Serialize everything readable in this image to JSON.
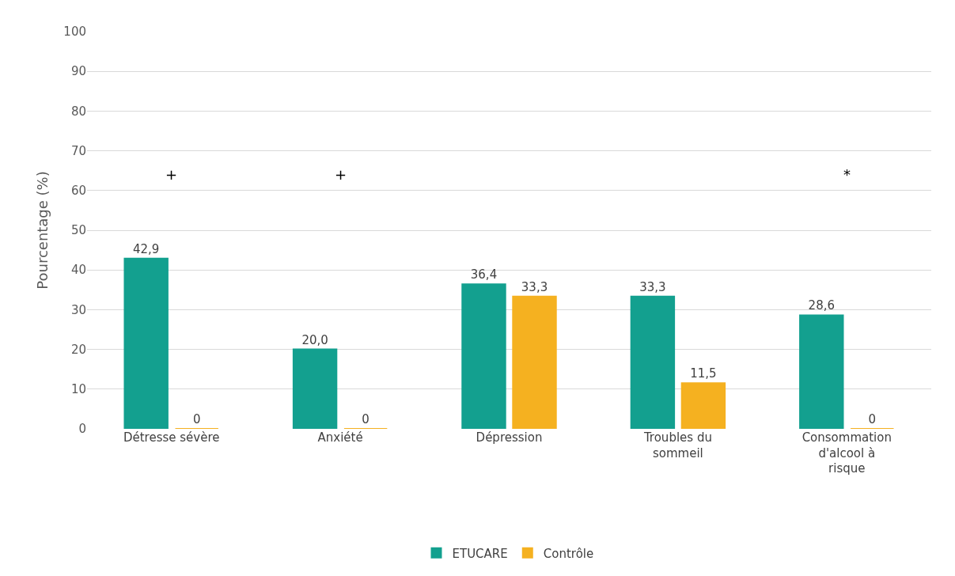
{
  "chart_data": {
    "type": "bar",
    "ylabel": "Pourcentage (%)",
    "categories": [
      "Détresse sévère",
      "Anxiété",
      "Dépression",
      "Troubles du sommeil",
      "Consommation d'alcool à risque"
    ],
    "series": [
      {
        "name": "ETUCARE",
        "color": "#13a08f",
        "values": [
          42.9,
          20.0,
          36.4,
          33.3,
          28.6
        ],
        "value_labels": [
          "42,9",
          "20,0",
          "36,4",
          "33,3",
          "28,6"
        ]
      },
      {
        "name": "Contrôle",
        "color": "#f5b120",
        "values": [
          0,
          0,
          33.3,
          11.5,
          0
        ],
        "value_labels": [
          "0",
          "0",
          "33,3",
          "11,5",
          "0"
        ]
      }
    ],
    "ylim": [
      0,
      100
    ],
    "yticks": [
      0,
      10,
      20,
      30,
      40,
      50,
      60,
      70,
      80,
      90,
      100
    ],
    "grid": "y",
    "legend": "bottom",
    "annotations": [
      "+",
      "+",
      "*"
    ]
  }
}
